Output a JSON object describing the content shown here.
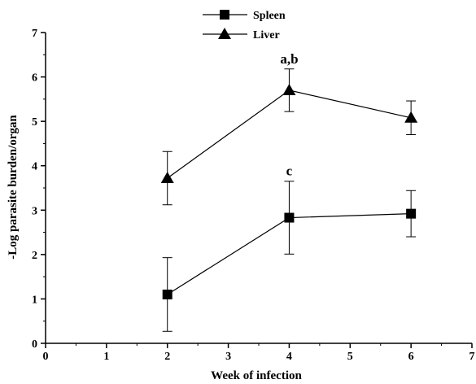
{
  "chart_data": {
    "type": "line",
    "title": "",
    "xlabel": "Week of infection",
    "ylabel": "-Log parasite burden/organ",
    "xlim": [
      0,
      7
    ],
    "ylim": [
      0,
      7
    ],
    "xticks": [
      "0",
      "1",
      "2",
      "3",
      "4",
      "5",
      "6",
      "7"
    ],
    "yticks": [
      "0",
      "1",
      "2",
      "3",
      "4",
      "5",
      "6",
      "7"
    ],
    "grid": false,
    "legend_position": "top-center",
    "series": [
      {
        "name": "Spleen",
        "marker": "square",
        "color": "#000000",
        "x": [
          2,
          4,
          6
        ],
        "y": [
          1.1,
          2.83,
          2.92
        ],
        "error": [
          0.83,
          0.82,
          0.52
        ]
      },
      {
        "name": "Liver",
        "marker": "triangle",
        "color": "#000000",
        "x": [
          2,
          4,
          6
        ],
        "y": [
          3.72,
          5.7,
          5.08
        ],
        "error": [
          0.6,
          0.48,
          0.38
        ]
      }
    ],
    "annotations": [
      {
        "text": "a,b",
        "x": 4,
        "y": 6.3
      },
      {
        "text": "c",
        "x": 4,
        "y": 3.78
      }
    ]
  }
}
